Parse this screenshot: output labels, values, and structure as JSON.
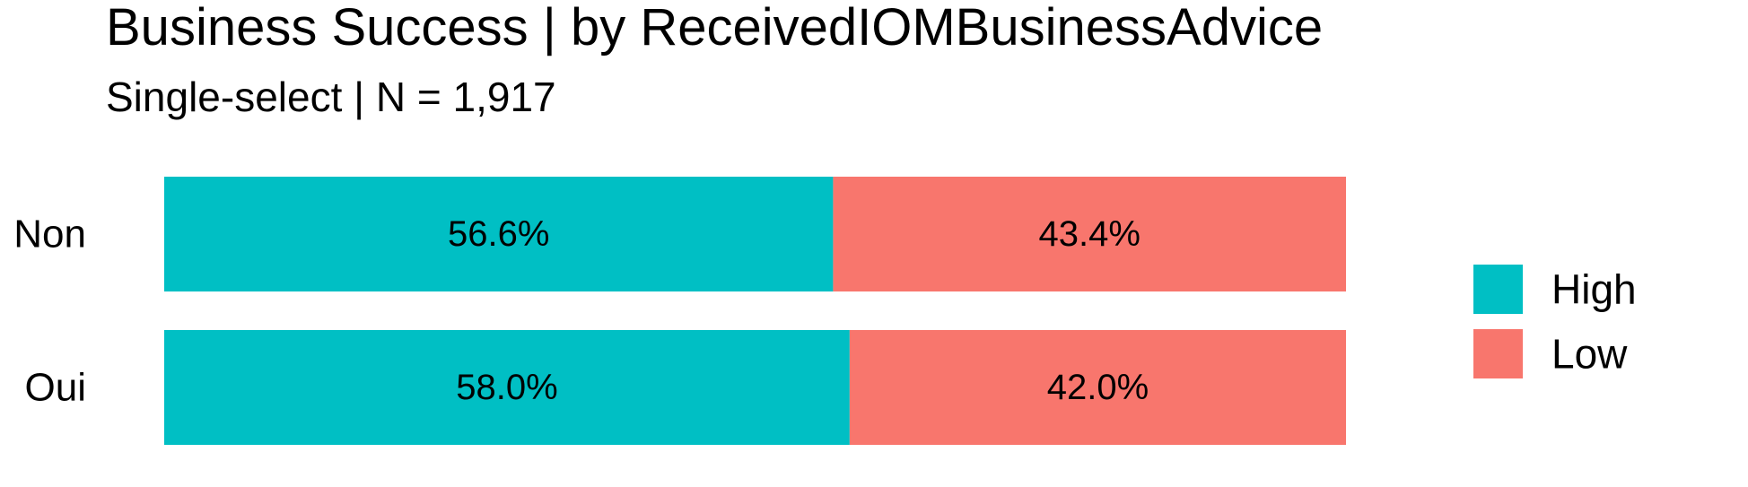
{
  "chart_data": {
    "type": "bar",
    "orientation": "horizontal",
    "stacked": true,
    "normalized": true,
    "title": "Business Success | by ReceivedIOMBusinessAdvice",
    "subtitle": "Single-select | N = 1,917",
    "xlabel": "",
    "ylabel": "",
    "categories": [
      "Non",
      "Oui"
    ],
    "series": [
      {
        "name": "High",
        "values": [
          56.6,
          58.0
        ],
        "labels": [
          "56.6%",
          "58.0%"
        ],
        "color": "#00BFC4"
      },
      {
        "name": "Low",
        "values": [
          43.4,
          42.0
        ],
        "labels": [
          "43.4%",
          "42.0%"
        ],
        "color": "#F8766D"
      }
    ],
    "xlim": [
      0,
      100
    ],
    "grid": false,
    "legend_position": "right"
  }
}
